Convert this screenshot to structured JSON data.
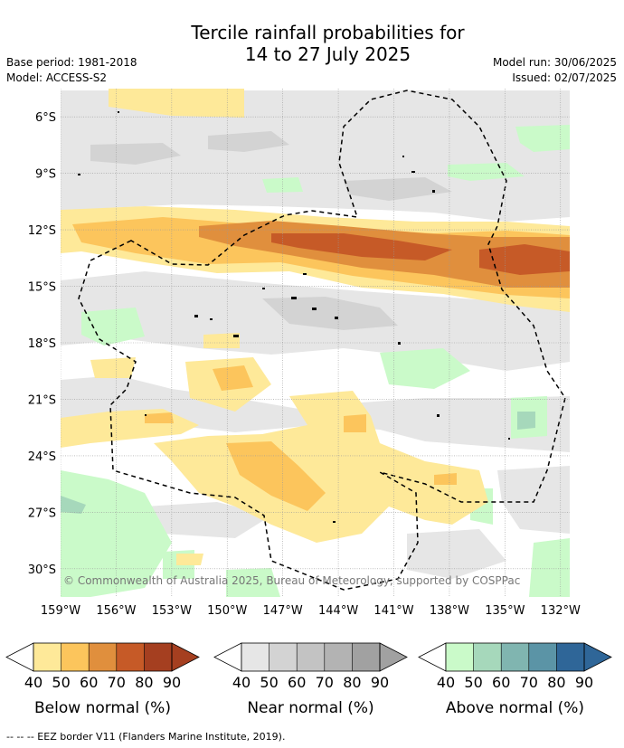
{
  "title_line1": "Tercile rainfall probabilities for",
  "title_line2": "14 to 27 July 2025",
  "base_period": "Base period: 1981-2018",
  "model": "Model: ACCESS-S2",
  "model_run": "Model run: 30/06/2025",
  "issued": "Issued: 02/07/2025",
  "copyright": "© Commonwealth of Australia 2025, Bureau of Meteorology, supported by COSPPac",
  "footer": "--  --  -- EEZ border V11 (Flanders Marine Institute, 2019).",
  "y_axis": {
    "min": -31.5,
    "max": -4.5,
    "ticks": [
      "6°S",
      "9°S",
      "12°S",
      "15°S",
      "18°S",
      "21°S",
      "24°S",
      "27°S",
      "30°S"
    ],
    "tick_values": [
      -6,
      -9,
      -12,
      -15,
      -18,
      -21,
      -24,
      -27,
      -30
    ]
  },
  "x_axis": {
    "min": -159,
    "max": -131.5,
    "ticks": [
      "159°W",
      "156°W",
      "153°W",
      "150°W",
      "147°W",
      "144°W",
      "141°W",
      "138°W",
      "135°W",
      "132°W"
    ],
    "tick_values": [
      -159,
      -156,
      -153,
      -150,
      -147,
      -144,
      -141,
      -138,
      -135,
      -132
    ]
  },
  "colorbars": [
    {
      "title": "Below normal (%)",
      "colors": [
        "#fee999",
        "#fcc55c",
        "#e08f3d",
        "#c65a27",
        "#a53f20"
      ],
      "labels": [
        "40",
        "50",
        "60",
        "70",
        "80",
        "90"
      ]
    },
    {
      "title": "Near normal (%)",
      "colors": [
        "#e6e6e6",
        "#d3d3d3",
        "#c3c3c3",
        "#b3b3b3",
        "#a1a1a1"
      ],
      "labels": [
        "40",
        "50",
        "60",
        "70",
        "80",
        "90"
      ]
    },
    {
      "title": "Above normal (%)",
      "colors": [
        "#cafac9",
        "#a6d8bb",
        "#80b5b0",
        "#5b94a6",
        "#2f6698"
      ],
      "labels": [
        "40",
        "50",
        "60",
        "70",
        "80",
        "90"
      ]
    }
  ],
  "colors": {
    "below_40": "#fee999",
    "below_50": "#fcc55c",
    "below_60": "#e08f3d",
    "below_70": "#c65a27",
    "near_40": "#e6e6e6",
    "near_50": "#d3d3d3",
    "above_40": "#cafac9",
    "above_50": "#a6d8bb",
    "above_60": "#80b5b0",
    "eez_border": "#000000"
  }
}
